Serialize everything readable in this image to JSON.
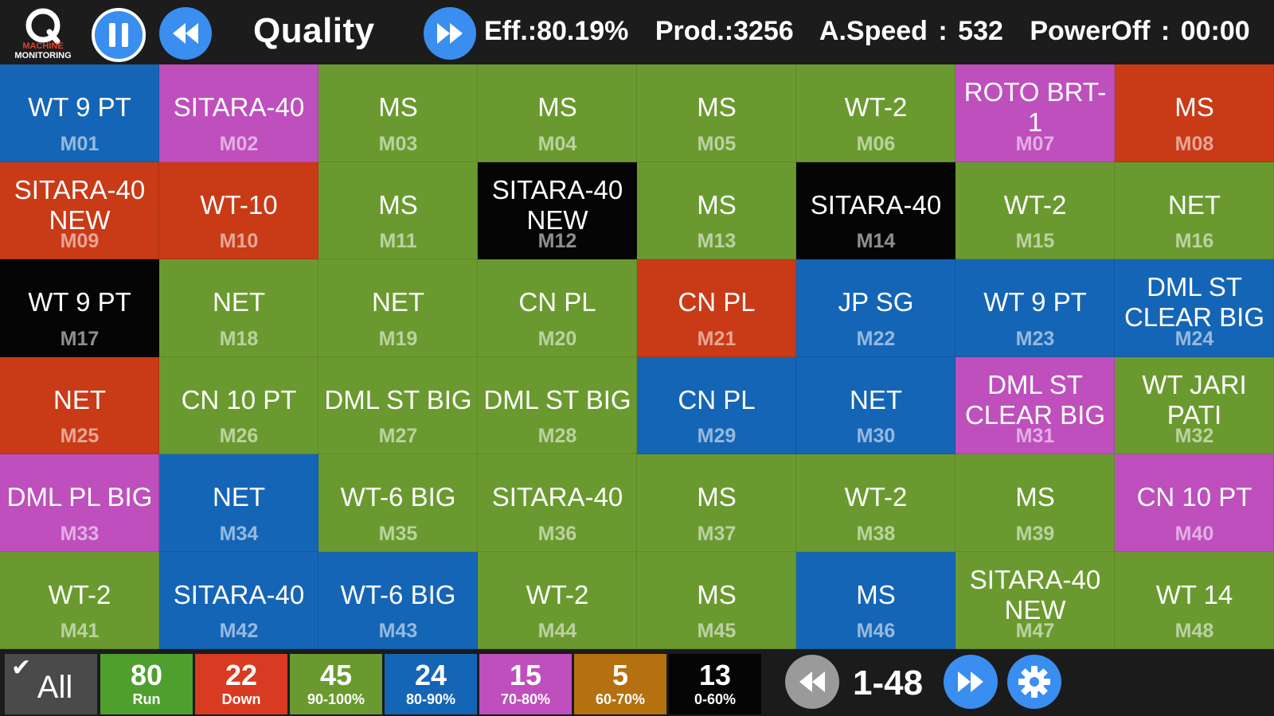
{
  "header": {
    "logo_text_1": "MACHINE",
    "logo_text_2": "MONITORING",
    "title": "Quality",
    "efficiency": "Eff.:80.19%",
    "production": "Prod.:3256",
    "avg_speed": "A.Speed : 532",
    "power_off": "PowerOff : 00:00"
  },
  "colors": {
    "green": "#6a9a2f",
    "blue": "#1565b6",
    "magenta": "#be4fbd",
    "red": "#c93a17",
    "black": "#050505",
    "accent": "#3a8ef0"
  },
  "machines": [
    {
      "name": "WT 9 PT",
      "code": "M01",
      "color": "blue"
    },
    {
      "name": "SITARA-40",
      "code": "M02",
      "color": "magenta"
    },
    {
      "name": "MS",
      "code": "M03",
      "color": "green"
    },
    {
      "name": "MS",
      "code": "M04",
      "color": "green"
    },
    {
      "name": "MS",
      "code": "M05",
      "color": "green"
    },
    {
      "name": "WT-2",
      "code": "M06",
      "color": "green"
    },
    {
      "name": "ROTO BRT-1",
      "code": "M07",
      "color": "magenta"
    },
    {
      "name": "MS",
      "code": "M08",
      "color": "red"
    },
    {
      "name": "SITARA-40\nNEW",
      "code": "M09",
      "color": "red"
    },
    {
      "name": "WT-10",
      "code": "M10",
      "color": "red"
    },
    {
      "name": "MS",
      "code": "M11",
      "color": "green"
    },
    {
      "name": "SITARA-40\nNEW",
      "code": "M12",
      "color": "black"
    },
    {
      "name": "MS",
      "code": "M13",
      "color": "green"
    },
    {
      "name": "SITARA-40",
      "code": "M14",
      "color": "black"
    },
    {
      "name": "WT-2",
      "code": "M15",
      "color": "green"
    },
    {
      "name": "NET",
      "code": "M16",
      "color": "green"
    },
    {
      "name": "WT 9 PT",
      "code": "M17",
      "color": "black"
    },
    {
      "name": "NET",
      "code": "M18",
      "color": "green"
    },
    {
      "name": "NET",
      "code": "M19",
      "color": "green"
    },
    {
      "name": "CN PL",
      "code": "M20",
      "color": "green"
    },
    {
      "name": "CN PL",
      "code": "M21",
      "color": "red"
    },
    {
      "name": "JP SG",
      "code": "M22",
      "color": "blue"
    },
    {
      "name": "WT 9 PT",
      "code": "M23",
      "color": "blue"
    },
    {
      "name": "DML ST\nCLEAR BIG",
      "code": "M24",
      "color": "blue"
    },
    {
      "name": "NET",
      "code": "M25",
      "color": "red"
    },
    {
      "name": "CN 10 PT",
      "code": "M26",
      "color": "green"
    },
    {
      "name": "DML ST BIG",
      "code": "M27",
      "color": "green"
    },
    {
      "name": "DML ST BIG",
      "code": "M28",
      "color": "green"
    },
    {
      "name": "CN PL",
      "code": "M29",
      "color": "blue"
    },
    {
      "name": "NET",
      "code": "M30",
      "color": "blue"
    },
    {
      "name": "DML ST\nCLEAR BIG",
      "code": "M31",
      "color": "magenta"
    },
    {
      "name": "WT JARI\nPATI",
      "code": "M32",
      "color": "green"
    },
    {
      "name": "DML PL BIG",
      "code": "M33",
      "color": "magenta"
    },
    {
      "name": "NET",
      "code": "M34",
      "color": "blue"
    },
    {
      "name": "WT-6 BIG",
      "code": "M35",
      "color": "green"
    },
    {
      "name": "SITARA-40",
      "code": "M36",
      "color": "green"
    },
    {
      "name": "MS",
      "code": "M37",
      "color": "green"
    },
    {
      "name": "WT-2",
      "code": "M38",
      "color": "green"
    },
    {
      "name": "MS",
      "code": "M39",
      "color": "green"
    },
    {
      "name": "CN 10 PT",
      "code": "M40",
      "color": "magenta"
    },
    {
      "name": "WT-2",
      "code": "M41",
      "color": "green"
    },
    {
      "name": "SITARA-40",
      "code": "M42",
      "color": "blue"
    },
    {
      "name": "WT-6 BIG",
      "code": "M43",
      "color": "blue"
    },
    {
      "name": "WT-2",
      "code": "M44",
      "color": "green"
    },
    {
      "name": "MS",
      "code": "M45",
      "color": "green"
    },
    {
      "name": "MS",
      "code": "M46",
      "color": "blue"
    },
    {
      "name": "SITARA-40\nNEW",
      "code": "M47",
      "color": "green"
    },
    {
      "name": "WT 14",
      "code": "M48",
      "color": "green"
    }
  ],
  "footer": {
    "all_label": "All",
    "filters": [
      {
        "count": "80",
        "label": "Run",
        "bg": "#4f9f2e"
      },
      {
        "count": "22",
        "label": "Down",
        "bg": "#d93a22"
      },
      {
        "count": "45",
        "label": "90-100%",
        "bg": "#6a9a2f"
      },
      {
        "count": "24",
        "label": "80-90%",
        "bg": "#1565b6"
      },
      {
        "count": "15",
        "label": "70-80%",
        "bg": "#be4fbd"
      },
      {
        "count": "5",
        "label": "60-70%",
        "bg": "#b5700f"
      },
      {
        "count": "13",
        "label": "0-60%",
        "bg": "#050505"
      }
    ],
    "page_range": "1-48"
  }
}
